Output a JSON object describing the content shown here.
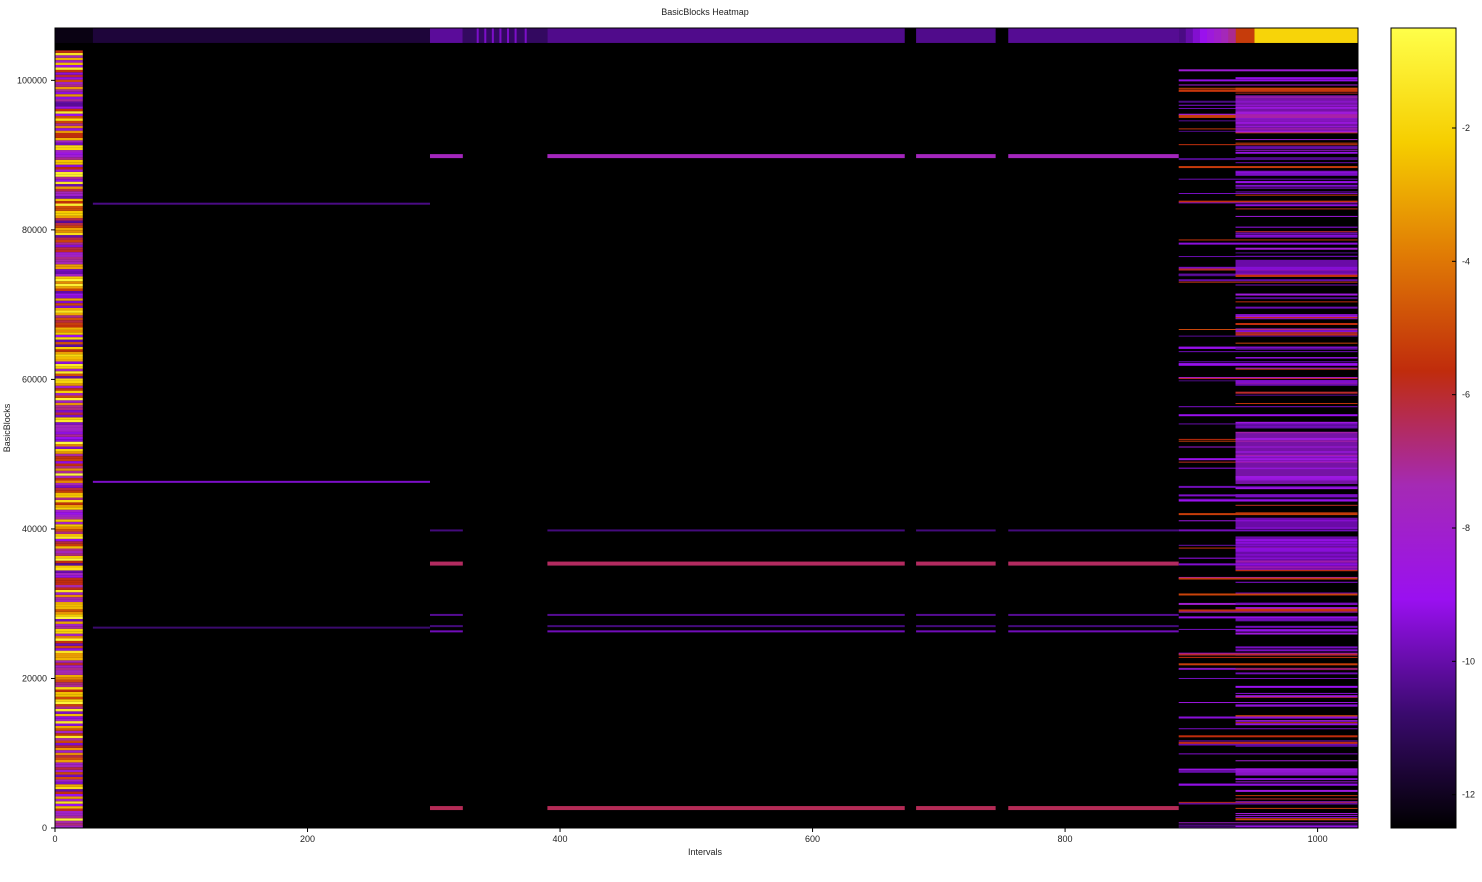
{
  "chart_data": {
    "type": "heatmap",
    "title": "BasicBlocks Heatmap",
    "xlabel": "Intervals",
    "ylabel": "BasicBlocks",
    "xlim": [
      0,
      1032
    ],
    "ylim": [
      0,
      107000
    ],
    "x_ticks": [
      0,
      200,
      400,
      600,
      800,
      1000
    ],
    "y_ticks": [
      0,
      20000,
      40000,
      60000,
      80000,
      100000
    ],
    "colorbar": {
      "range": [
        -12.5,
        -0.5
      ],
      "ticks": [
        -2,
        -4,
        -6,
        -8,
        -10,
        -12
      ],
      "colormap": [
        "#000000",
        "#3a0a6e",
        "#9a10f0",
        "#a52ab4",
        "#c02c0c",
        "#e07a05",
        "#f6ce00",
        "#ffff4a"
      ]
    },
    "background_color": "#000000",
    "phases": [
      {
        "x_start": 0,
        "x_end": 30,
        "label_level": -12.2
      },
      {
        "x_start": 30,
        "x_end": 297,
        "label_level": -11.6
      },
      {
        "x_start": 297,
        "x_end": 323,
        "label_level": -10.2
      },
      {
        "x_start": 323,
        "x_end": 390,
        "label_level": -11.0
      },
      {
        "x_start": 390,
        "x_end": 673,
        "label_level": -10.4
      },
      {
        "x_start": 682,
        "x_end": 745,
        "label_level": -10.4
      },
      {
        "x_start": 755,
        "x_end": 890,
        "label_level": -10.3
      },
      {
        "x_start": 890,
        "x_end": 935,
        "label_level": -8.8
      },
      {
        "x_start": 935,
        "x_end": 950,
        "label_level": -5.3
      },
      {
        "x_start": 950,
        "x_end": 1032,
        "label_level": -2.0
      }
    ],
    "horizontal_bands": [
      {
        "y": 83500,
        "x_start": 30,
        "x_end": 297,
        "level": -10.5
      },
      {
        "y": 46300,
        "x_start": 30,
        "x_end": 297,
        "level": -9.6
      },
      {
        "y": 26800,
        "x_start": 30,
        "x_end": 297,
        "level": -10.8
      },
      {
        "y": 90000,
        "x_start": 297,
        "x_end": 890,
        "level": -7.6
      },
      {
        "y": 39800,
        "x_start": 297,
        "x_end": 890,
        "level": -10.6
      },
      {
        "y": 35500,
        "x_start": 297,
        "x_end": 890,
        "level": -6.5
      },
      {
        "y": 28500,
        "x_start": 297,
        "x_end": 890,
        "level": -10.3
      },
      {
        "y": 27000,
        "x_start": 297,
        "x_end": 890,
        "level": -10.6
      },
      {
        "y": 26300,
        "x_start": 297,
        "x_end": 890,
        "level": -9.8
      },
      {
        "y": 2800,
        "x_start": 297,
        "x_end": 890,
        "level": -6.4
      }
    ],
    "x_gaps": [
      [
        323,
        390
      ],
      [
        673,
        682
      ],
      [
        745,
        755
      ]
    ],
    "first_column": {
      "x_start": 0,
      "x_end": 22,
      "y_max": 104000,
      "dominant_levels": [
        -1.5,
        -3.0,
        -5.5,
        -7.5,
        -9.5
      ]
    },
    "dense_region": {
      "x_start": 890,
      "x_end": 1032,
      "y_max": 102000,
      "dominant_levels": [
        -9.5,
        -10.0,
        -8.5,
        -5.5
      ]
    }
  }
}
